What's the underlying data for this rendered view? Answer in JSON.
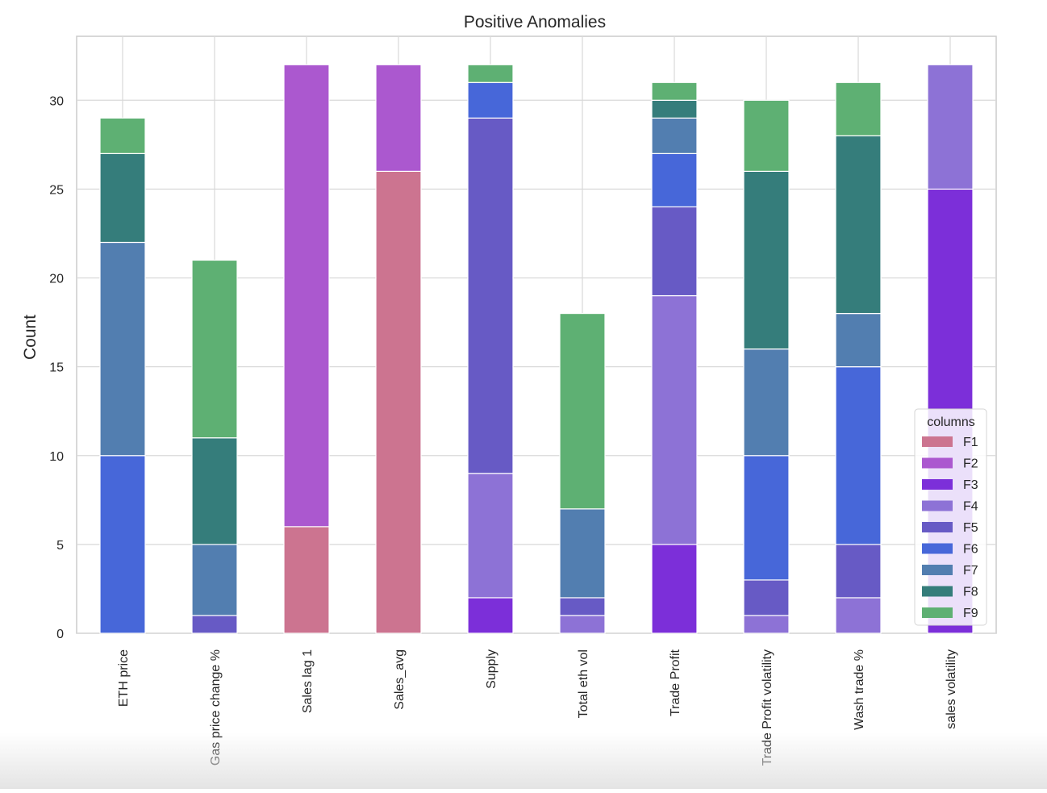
{
  "chart_data": {
    "type": "bar",
    "stacked": true,
    "title": "Positive Anomalies",
    "xlabel": "",
    "ylabel": "Count",
    "ylim": [
      0,
      33.6
    ],
    "yticks": [
      0,
      5,
      10,
      15,
      20,
      25,
      30
    ],
    "grid": true,
    "categories": [
      "ETH price",
      "Gas price change %",
      "Sales lag 1",
      "Sales_avg",
      "Supply",
      "Total eth vol",
      "Trade Profit",
      "Trade Profit volatility",
      "Wash trade %",
      "sales volatility"
    ],
    "legend": {
      "title": "columns",
      "placement": "lower-right"
    },
    "series": [
      {
        "name": "F1",
        "color": "#cc7490",
        "values": [
          0,
          0,
          6,
          26,
          0,
          0,
          0,
          0,
          0,
          0
        ]
      },
      {
        "name": "F2",
        "color": "#ab58cf",
        "values": [
          0,
          0,
          26,
          6,
          0,
          0,
          0,
          0,
          0,
          0
        ]
      },
      {
        "name": "F3",
        "color": "#7c2fd9",
        "values": [
          0,
          0,
          0,
          0,
          2,
          0,
          5,
          0,
          0,
          25
        ]
      },
      {
        "name": "F4",
        "color": "#8d72d6",
        "values": [
          0,
          0,
          0,
          0,
          7,
          1,
          14,
          1,
          2,
          7
        ]
      },
      {
        "name": "F5",
        "color": "#675ac5",
        "values": [
          0,
          1,
          0,
          0,
          20,
          1,
          5,
          2,
          3,
          0
        ]
      },
      {
        "name": "F6",
        "color": "#4767d9",
        "values": [
          10,
          0,
          0,
          0,
          2,
          0,
          3,
          7,
          10,
          0
        ]
      },
      {
        "name": "F7",
        "color": "#527eb0",
        "values": [
          12,
          4,
          0,
          0,
          0,
          5,
          2,
          6,
          3,
          0
        ]
      },
      {
        "name": "F8",
        "color": "#357d7b",
        "values": [
          5,
          6,
          0,
          0,
          0,
          0,
          1,
          10,
          10,
          0
        ]
      },
      {
        "name": "F9",
        "color": "#5eb073",
        "values": [
          2,
          10,
          0,
          0,
          1,
          11,
          1,
          4,
          3,
          0
        ]
      }
    ]
  }
}
